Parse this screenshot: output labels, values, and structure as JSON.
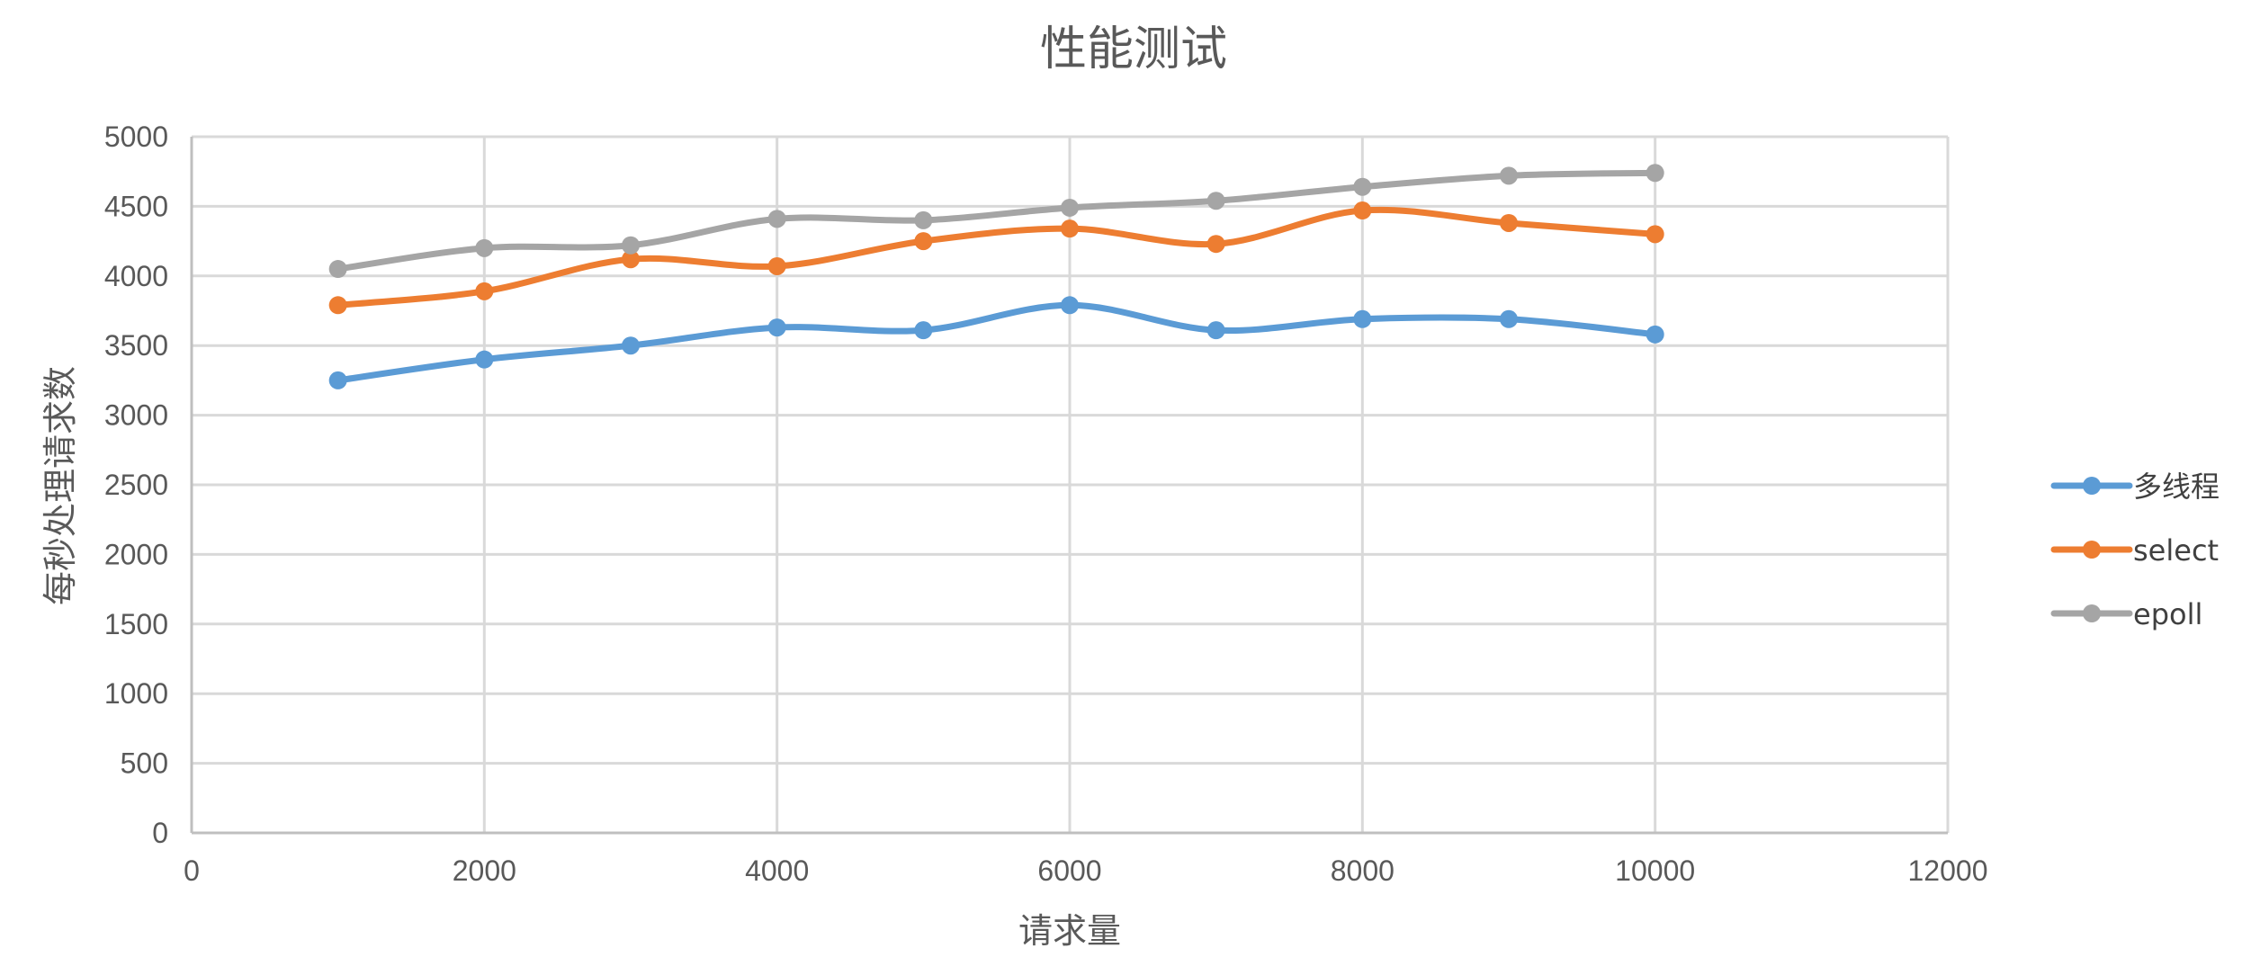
{
  "chart_data": {
    "type": "line",
    "title": "性能测试",
    "xlabel": "请求量",
    "ylabel": "每秒处理请求数",
    "xlim": [
      0,
      12000
    ],
    "ylim": [
      0,
      5000
    ],
    "x_ticks": [
      0,
      2000,
      4000,
      6000,
      8000,
      10000,
      12000
    ],
    "y_ticks": [
      0,
      500,
      1000,
      1500,
      2000,
      2500,
      3000,
      3500,
      4000,
      4500,
      5000
    ],
    "grid": true,
    "smooth": true,
    "legend_position": "right",
    "x": [
      1000,
      2000,
      3000,
      4000,
      5000,
      6000,
      7000,
      8000,
      9000,
      10000
    ],
    "series": [
      {
        "name": "多线程",
        "color": "#5b9bd5",
        "values": [
          3250,
          3400,
          3500,
          3630,
          3610,
          3790,
          3610,
          3690,
          3690,
          3580
        ]
      },
      {
        "name": "select",
        "color": "#ed7d31",
        "values": [
          3790,
          3890,
          4120,
          4070,
          4250,
          4340,
          4230,
          4470,
          4380,
          4300
        ]
      },
      {
        "name": "epoll",
        "color": "#a5a5a5",
        "values": [
          4050,
          4200,
          4220,
          4410,
          4400,
          4490,
          4540,
          4640,
          4720,
          4740
        ]
      }
    ]
  }
}
